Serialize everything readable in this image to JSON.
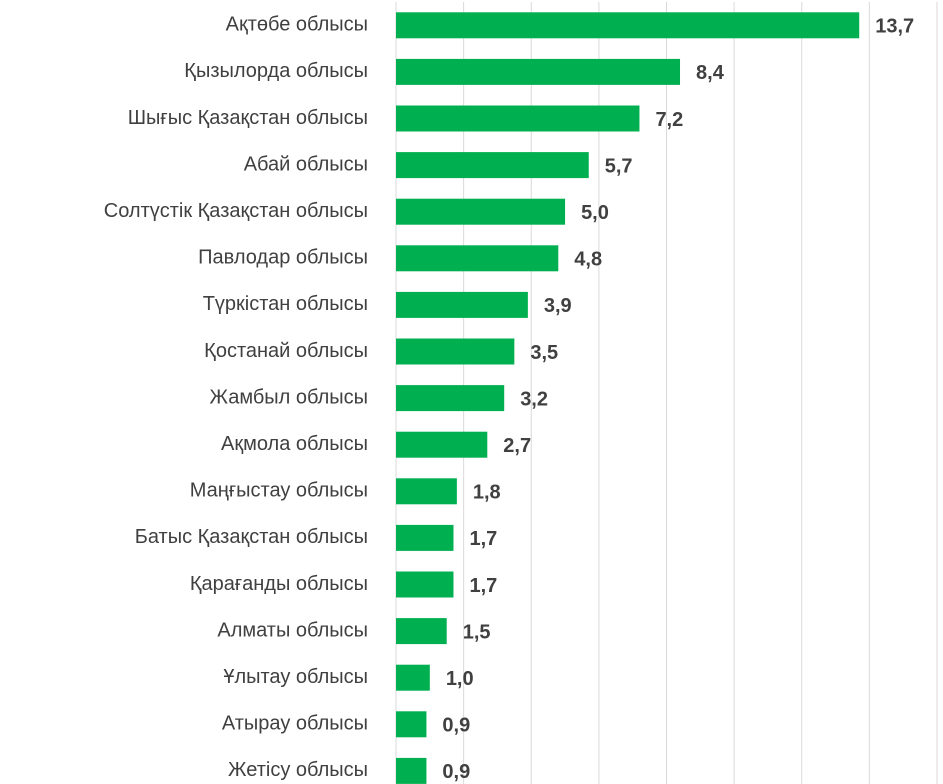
{
  "chart_data": {
    "type": "barh",
    "categories": [
      "Ақтөбе облысы",
      "Қызылорда облысы",
      "Шығыс Қазақстан облысы",
      "Абай облысы",
      "Солтүстік Қазақстан облысы",
      "Павлодар облысы",
      "Түркістан облысы",
      "Қостанай облысы",
      "Жамбыл облысы",
      "Ақмола облысы",
      "Маңғыстау облысы",
      "Батыс Қазақстан облысы",
      "Қарағанды облысы",
      "Алматы облысы",
      "Ұлытау облысы",
      "Атырау облысы",
      "Жетісу облысы"
    ],
    "values": [
      13.7,
      8.4,
      7.2,
      5.7,
      5.0,
      4.8,
      3.9,
      3.5,
      3.2,
      2.7,
      1.8,
      1.7,
      1.7,
      1.5,
      1.0,
      0.9,
      0.9
    ],
    "value_labels": [
      "13,7",
      "8,4",
      "7,2",
      "5,7",
      "5,0",
      "4,8",
      "3,9",
      "3,5",
      "3,2",
      "2,7",
      "1,8",
      "1,7",
      "1,7",
      "1,5",
      "1,0",
      "0,9",
      "0,9"
    ],
    "color": "#00b050",
    "xlim": [
      0,
      16
    ],
    "xticks": [
      0,
      2,
      4,
      6,
      8,
      10,
      12,
      14,
      16
    ],
    "grid": true
  }
}
